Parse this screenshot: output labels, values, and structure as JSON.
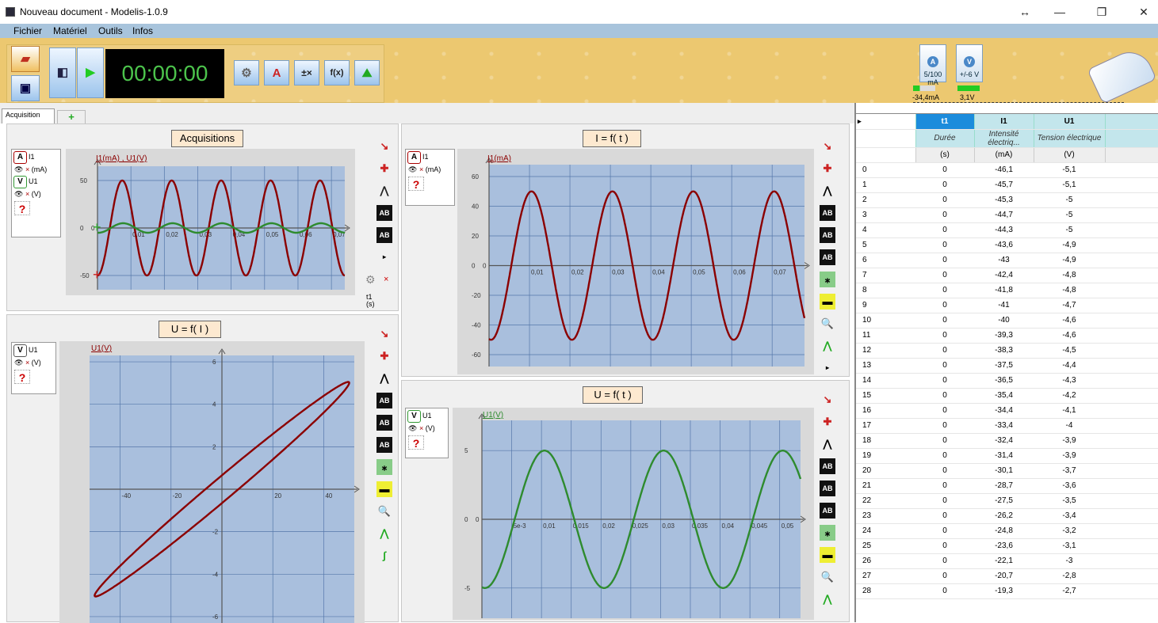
{
  "window": {
    "title": "Nouveau document - Modelis-1.0.9",
    "controls": [
      "↔",
      "—",
      "❐",
      "✕"
    ]
  },
  "menu": [
    "Fichier",
    "Matériel",
    "Outils",
    "Infos"
  ],
  "toolbar": {
    "timer": "00:00:00"
  },
  "probes": [
    {
      "letter": "A",
      "range": "5/100 mA",
      "value": "-34,4mA"
    },
    {
      "letter": "V",
      "range": "+/-6 V",
      "value": "3,1V"
    }
  ],
  "tabs": {
    "active": "Acquisition",
    "add": "+"
  },
  "panels": {
    "acquisitions": {
      "title": "Acquisitions",
      "series_label": "I1(mA) , U1(V)",
      "legend": [
        {
          "letter": "A",
          "name": "I1",
          "unit": "(mA)"
        },
        {
          "letter": "V",
          "name": "U1",
          "unit": "(V)"
        }
      ],
      "x_sel": {
        "name": "t1",
        "unit": "(s)"
      }
    },
    "i_t": {
      "title": "I = f( t )",
      "series_label": "I1(mA)",
      "legend": {
        "letter": "A",
        "name": "I1",
        "unit": "(mA)"
      }
    },
    "u_i": {
      "title": "U = f( I )",
      "series_label": "U1(V)",
      "legend": {
        "letter": "V",
        "name": "U1",
        "unit": "(V)"
      }
    },
    "u_t": {
      "title": "U = f( t )",
      "series_label": "U1(V)",
      "legend": {
        "letter": "V",
        "name": "U1",
        "unit": "(V)"
      }
    }
  },
  "chart_data": [
    {
      "type": "line",
      "title": "Acquisitions",
      "series": [
        {
          "name": "I1(mA)",
          "amplitude": 50,
          "color": "#8b0000"
        },
        {
          "name": "U1(V)",
          "amplitude": 5,
          "color": "#2e8b2e"
        }
      ],
      "yticks": [
        "50",
        "0",
        "-50"
      ],
      "ylim": [
        -65,
        65
      ],
      "xticks": [
        "0,01",
        "0,02",
        "0,03",
        "0,04",
        "0,05",
        "0,06",
        "0,07"
      ],
      "xlim": [
        0,
        0.074
      ]
    },
    {
      "type": "line",
      "title": "I = f( t )",
      "series": [
        {
          "name": "I1(mA)",
          "amplitude": 50,
          "period": 0.02,
          "color": "#8b0000"
        }
      ],
      "yticks": [
        "60",
        "40",
        "20",
        "0",
        "-20",
        "-40",
        "-60"
      ],
      "ylim": [
        -68,
        68
      ],
      "xticks": [
        "0,01",
        "0,02",
        "0,03",
        "0,04",
        "0,05",
        "0,06",
        "0,07"
      ],
      "xlim": [
        0,
        0.078
      ]
    },
    {
      "type": "line",
      "title": "U = f( I )",
      "series": [
        {
          "name": "U1(V)",
          "color": "#8b0000"
        }
      ],
      "xticks": [
        "-40",
        "-20",
        "20",
        "40"
      ],
      "xlim": [
        -52,
        52
      ],
      "yticks": [
        "6",
        "4",
        "2",
        "-2",
        "-4",
        "-6"
      ],
      "ylim": [
        -6.3,
        6.3
      ]
    },
    {
      "type": "line",
      "title": "U = f( t )",
      "series": [
        {
          "name": "U1(V)",
          "amplitude": 5,
          "period": 0.02,
          "color": "#2e8b2e"
        }
      ],
      "xticks": [
        "5e-3",
        "0,01",
        "0,015",
        "0,02",
        "0,025",
        "0,03",
        "0,035",
        "0,04",
        "0,045",
        "0,05"
      ],
      "xlim": [
        0,
        0.0535
      ],
      "yticks": [
        "5",
        "0",
        "-5"
      ],
      "ylim": [
        -7.2,
        7.2
      ]
    }
  ],
  "table": {
    "columns": [
      {
        "name": "t1",
        "desc": "Durée",
        "unit": "(s)"
      },
      {
        "name": "I1",
        "desc": "Intensité électriq...",
        "unit": "(mA)"
      },
      {
        "name": "U1",
        "desc": "Tension électrique",
        "unit": "(V)"
      }
    ],
    "rows": [
      [
        "0",
        "0",
        "-46,1",
        "-5,1"
      ],
      [
        "1",
        "0",
        "-45,7",
        "-5,1"
      ],
      [
        "2",
        "0",
        "-45,3",
        "-5"
      ],
      [
        "3",
        "0",
        "-44,7",
        "-5"
      ],
      [
        "4",
        "0",
        "-44,3",
        "-5"
      ],
      [
        "5",
        "0",
        "-43,6",
        "-4,9"
      ],
      [
        "6",
        "0",
        "-43",
        "-4,9"
      ],
      [
        "7",
        "0",
        "-42,4",
        "-4,8"
      ],
      [
        "8",
        "0",
        "-41,8",
        "-4,8"
      ],
      [
        "9",
        "0",
        "-41",
        "-4,7"
      ],
      [
        "10",
        "0",
        "-40",
        "-4,6"
      ],
      [
        "11",
        "0",
        "-39,3",
        "-4,6"
      ],
      [
        "12",
        "0",
        "-38,3",
        "-4,5"
      ],
      [
        "13",
        "0",
        "-37,5",
        "-4,4"
      ],
      [
        "14",
        "0",
        "-36,5",
        "-4,3"
      ],
      [
        "15",
        "0",
        "-35,4",
        "-4,2"
      ],
      [
        "16",
        "0",
        "-34,4",
        "-4,1"
      ],
      [
        "17",
        "0",
        "-33,4",
        "-4"
      ],
      [
        "18",
        "0",
        "-32,4",
        "-3,9"
      ],
      [
        "19",
        "0",
        "-31,4",
        "-3,9"
      ],
      [
        "20",
        "0",
        "-30,1",
        "-3,7"
      ],
      [
        "21",
        "0",
        "-28,7",
        "-3,6"
      ],
      [
        "22",
        "0",
        "-27,5",
        "-3,5"
      ],
      [
        "23",
        "0",
        "-26,2",
        "-3,4"
      ],
      [
        "24",
        "0",
        "-24,8",
        "-3,2"
      ],
      [
        "25",
        "0",
        "-23,6",
        "-3,1"
      ],
      [
        "26",
        "0",
        "-22,1",
        "-3"
      ],
      [
        "27",
        "0",
        "-20,7",
        "-2,8"
      ],
      [
        "28",
        "0",
        "-19,3",
        "-2,7"
      ]
    ]
  }
}
